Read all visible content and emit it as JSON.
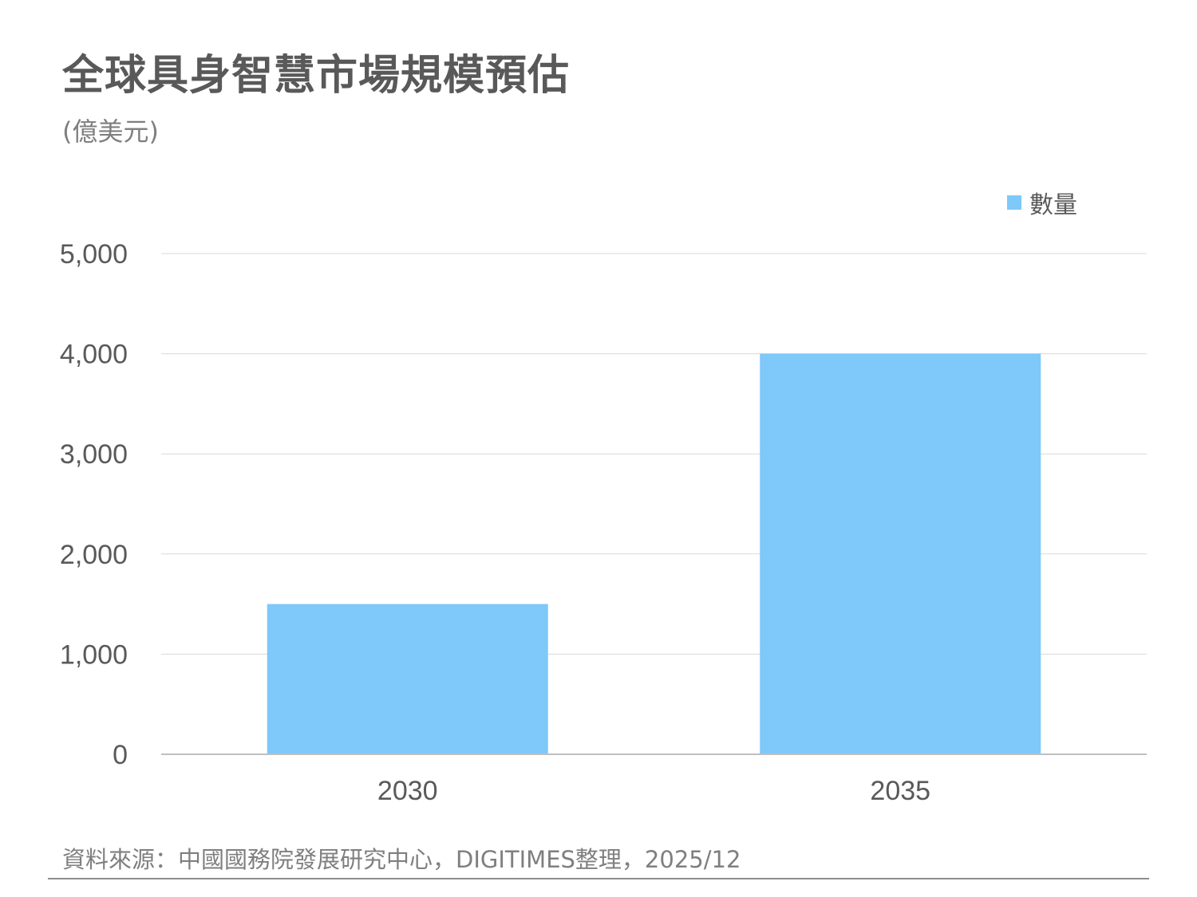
{
  "title": "全球具身智慧市場規模預估",
  "subtitle": "(億美元)",
  "footer": "資料來源：中國國務院發展研究中心，DIGITIMES整理，2025/12",
  "colors": {
    "bar": "#7ec8fa",
    "grid": "#d9d9d9",
    "axis": "#bfbfbf",
    "tick_text": "#595959",
    "title": "#595959"
  },
  "chart_data": {
    "type": "bar",
    "categories": [
      "2030",
      "2035"
    ],
    "series": [
      {
        "name": "數量",
        "values": [
          1500,
          4000
        ]
      }
    ],
    "title": "全球具身智慧市場規模預估",
    "ylabel": "(億美元)",
    "xlabel": "",
    "ylim": [
      0,
      5000
    ],
    "yticks": [
      0,
      1000,
      2000,
      3000,
      4000,
      5000
    ],
    "ytick_labels": [
      "0",
      "1,000",
      "2,000",
      "3,000",
      "4,000",
      "5,000"
    ],
    "grid": true,
    "legend": "top-right"
  }
}
